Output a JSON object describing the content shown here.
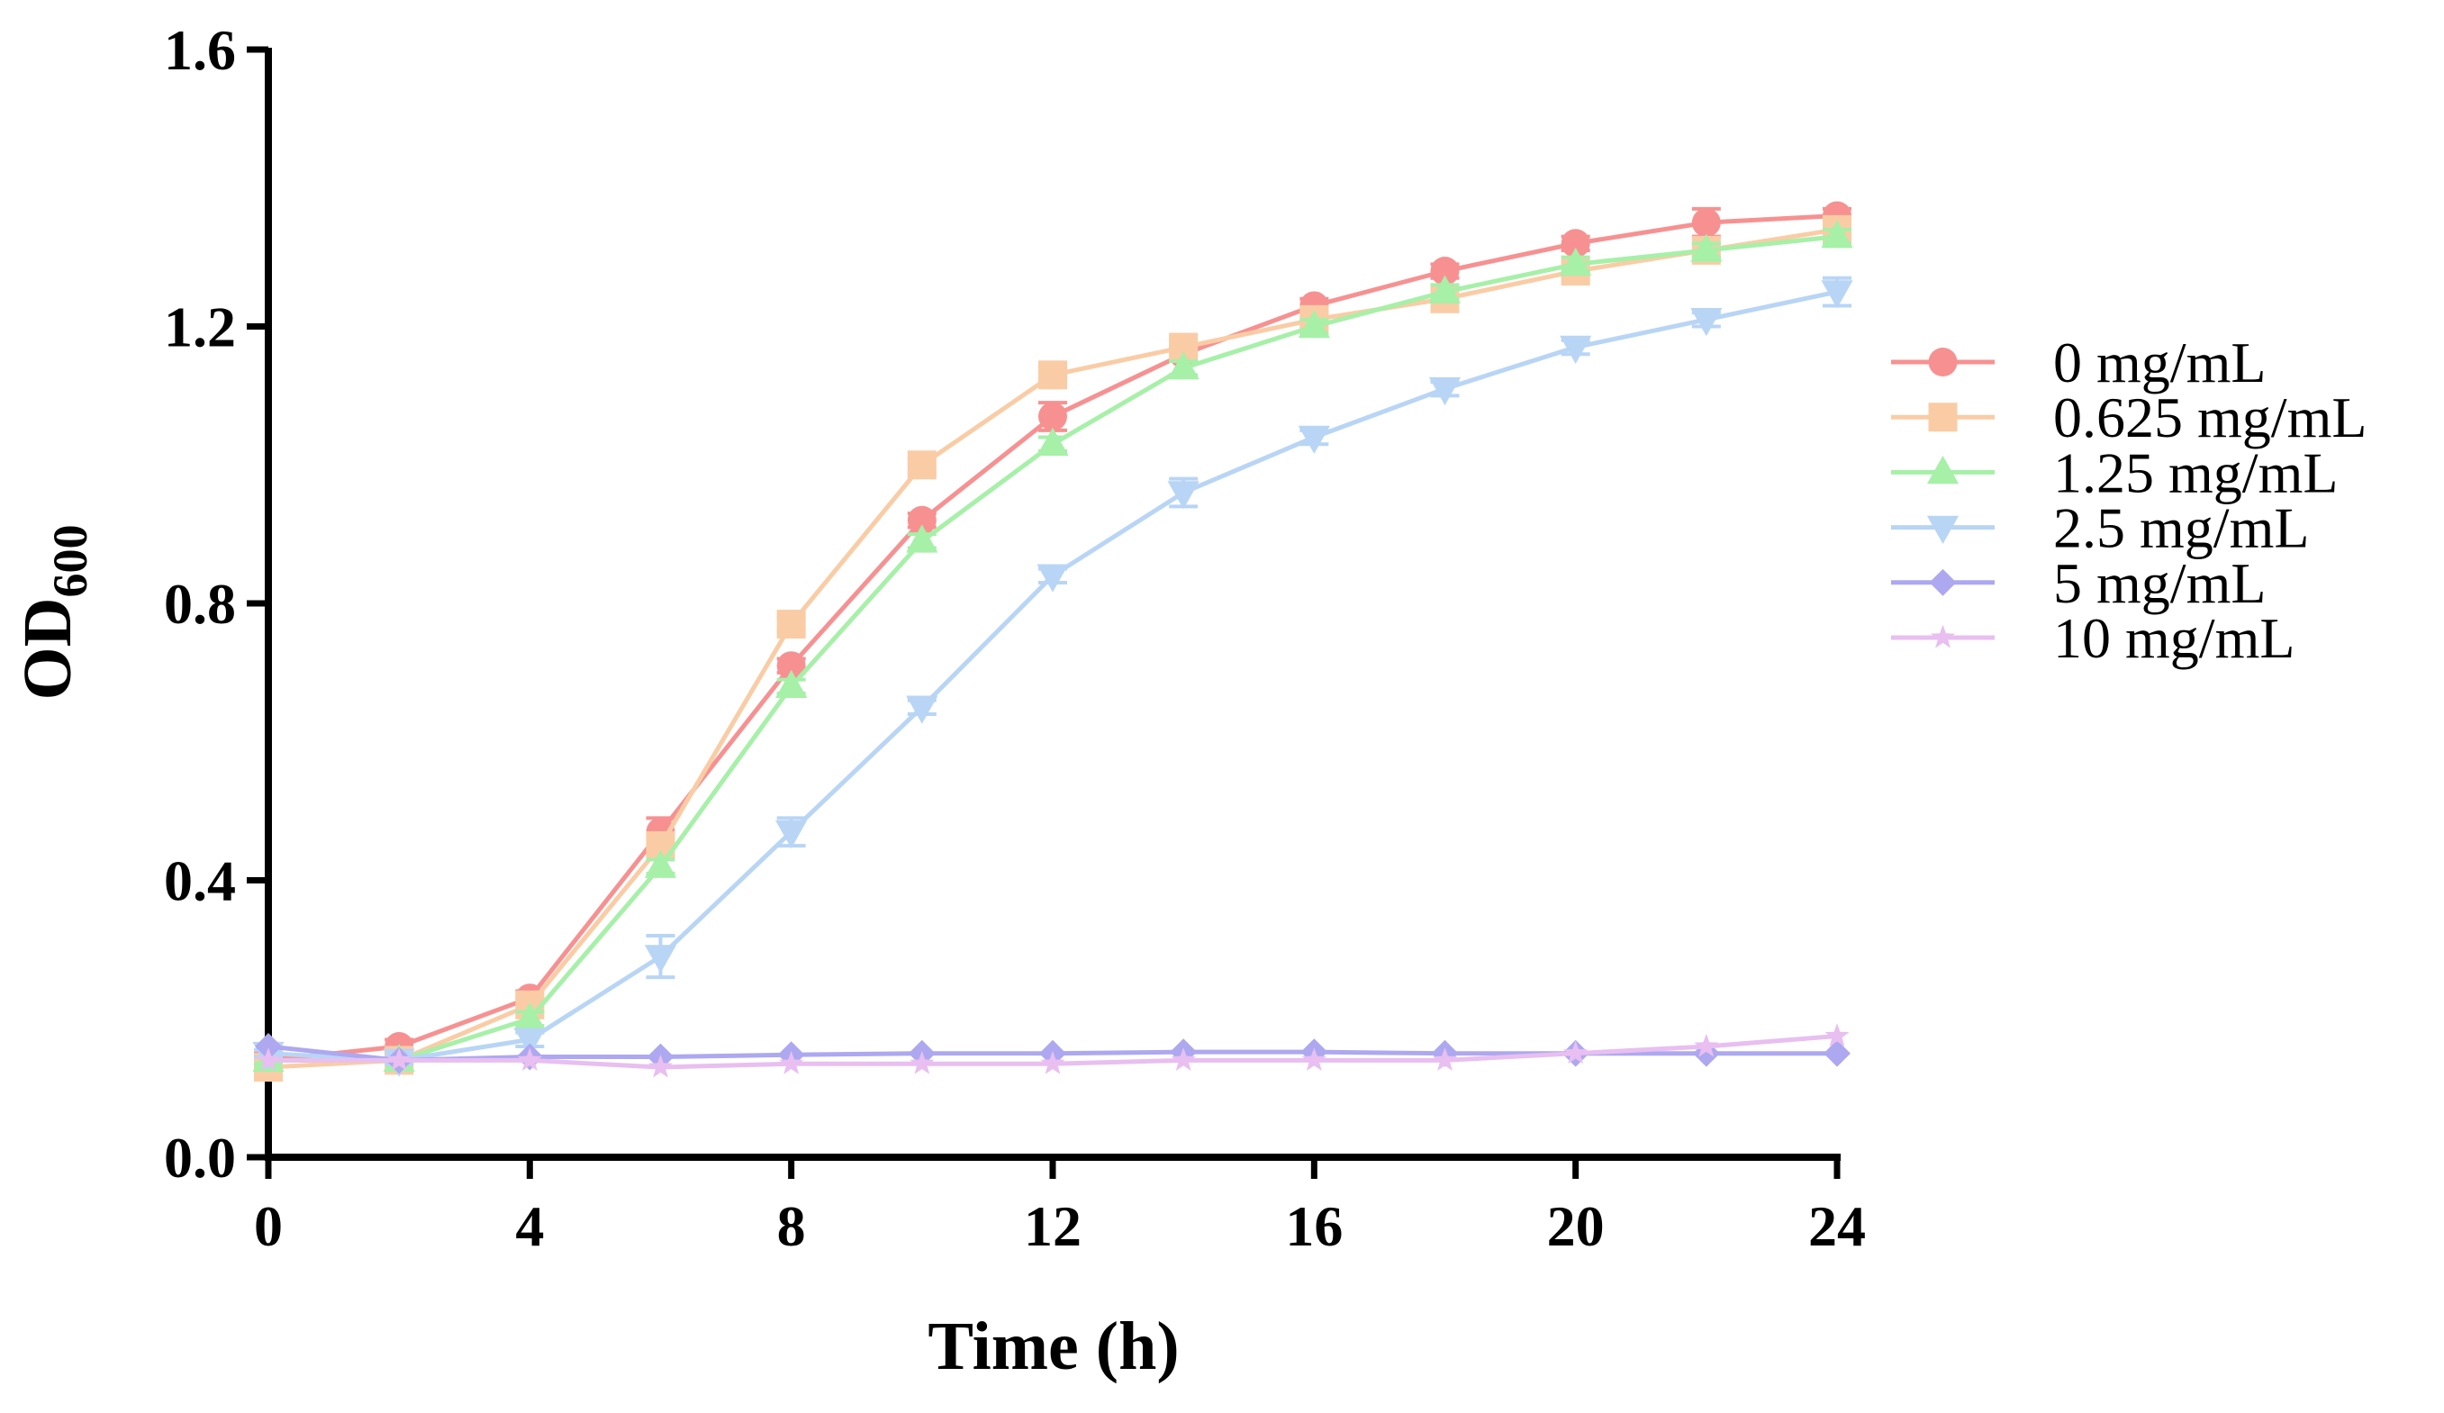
{
  "chart_data": {
    "type": "line",
    "title": "",
    "xlabel": "Time (h)",
    "ylabel_main": "OD",
    "ylabel_sub": "600",
    "xlim": [
      0,
      24
    ],
    "ylim": [
      0,
      1.6
    ],
    "xticks": [
      "0",
      "4",
      "8",
      "12",
      "16",
      "20",
      "24"
    ],
    "xtick_values": [
      0,
      4,
      8,
      12,
      16,
      20,
      24
    ],
    "yticks": [
      "0.0",
      "0.4",
      "0.8",
      "1.2",
      "1.6"
    ],
    "ytick_values": [
      0,
      0.4,
      0.8,
      1.2,
      1.6
    ],
    "grid": false,
    "legend_position": "right",
    "x": [
      0,
      2,
      4,
      6,
      8,
      10,
      12,
      14,
      16,
      18,
      20,
      22,
      24
    ],
    "series": [
      {
        "name": "0 mg/mL",
        "color": "#F79191",
        "marker": "circle",
        "values": [
          0.14,
          0.16,
          0.23,
          0.47,
          0.71,
          0.92,
          1.07,
          1.16,
          1.23,
          1.28,
          1.32,
          1.35,
          1.36
        ],
        "errors": [
          0.01,
          0.01,
          0.01,
          0.02,
          0.01,
          0.01,
          0.02,
          0.01,
          0.01,
          0.01,
          0.01,
          0.02,
          0.01
        ]
      },
      {
        "name": "0.625 mg/mL",
        "color": "#FACCA5",
        "marker": "square",
        "values": [
          0.13,
          0.14,
          0.22,
          0.45,
          0.77,
          1.0,
          1.13,
          1.17,
          1.21,
          1.24,
          1.28,
          1.31,
          1.34
        ],
        "errors": [
          0.005,
          0.005,
          0.01,
          0.01,
          0.01,
          0.01,
          0.01,
          0.01,
          0.01,
          0.01,
          0.01,
          0.01,
          0.01
        ]
      },
      {
        "name": "1.25 mg/mL",
        "color": "#A6F0A8",
        "marker": "triangle-up",
        "values": [
          0.14,
          0.14,
          0.2,
          0.42,
          0.68,
          0.89,
          1.03,
          1.14,
          1.2,
          1.25,
          1.29,
          1.31,
          1.33
        ],
        "errors": [
          0.005,
          0.005,
          0.01,
          0.01,
          0.01,
          0.01,
          0.01,
          0.01,
          0.01,
          0.01,
          0.01,
          0.01,
          0.01
        ]
      },
      {
        "name": "2.5 mg/mL",
        "color": "#B8D5F5",
        "marker": "triangle-down",
        "values": [
          0.15,
          0.14,
          0.17,
          0.29,
          0.47,
          0.65,
          0.84,
          0.96,
          1.04,
          1.11,
          1.17,
          1.21,
          1.25
        ],
        "errors": [
          0.005,
          0.005,
          0.01,
          0.03,
          0.02,
          0.01,
          0.01,
          0.02,
          0.01,
          0.01,
          0.01,
          0.01,
          0.02
        ]
      },
      {
        "name": "5 mg/mL",
        "color": "#ADA8F0",
        "marker": "diamond",
        "values": [
          0.16,
          0.14,
          0.145,
          0.145,
          0.148,
          0.15,
          0.15,
          0.152,
          0.152,
          0.15,
          0.15,
          0.15,
          0.15
        ],
        "errors": [
          0,
          0,
          0,
          0,
          0,
          0,
          0,
          0,
          0,
          0,
          0,
          0,
          0
        ]
      },
      {
        "name": "10 mg/mL",
        "color": "#E8BFF0",
        "marker": "star",
        "values": [
          0.14,
          0.14,
          0.14,
          0.13,
          0.135,
          0.135,
          0.135,
          0.14,
          0.14,
          0.14,
          0.15,
          0.16,
          0.175
        ],
        "errors": [
          0,
          0,
          0,
          0,
          0,
          0,
          0,
          0,
          0,
          0,
          0,
          0,
          0
        ]
      }
    ]
  }
}
